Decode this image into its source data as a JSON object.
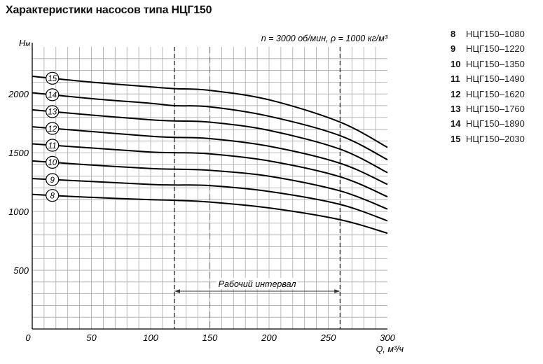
{
  "title": "Характеристики насосов типа НЦГ150",
  "chart_data": {
    "type": "line",
    "title": "Характеристики насосов типа НЦГ150",
    "ylabel_main": "H",
    "ylabel_sub": "м",
    "xlabel": "Q, м³/ч",
    "conditions": "n = 3000 об/мин, ρ = 1000 кг/м³",
    "xlim": [
      0,
      300
    ],
    "ylim": [
      0,
      2400
    ],
    "x_ticks": [
      0,
      50,
      100,
      150,
      200,
      250,
      300
    ],
    "y_ticks": [
      500,
      1000,
      1500,
      2000
    ],
    "grid": true,
    "working_interval": {
      "label": "Рабочий интервал",
      "from": 120,
      "to": 260,
      "nominal": 150
    },
    "series": [
      {
        "name": "8",
        "x": [
          0,
          50,
          100,
          120,
          150,
          200,
          260,
          300
        ],
        "y": [
          1145,
          1120,
          1100,
          1095,
          1080,
          1030,
          930,
          815
        ]
      },
      {
        "name": "9",
        "x": [
          0,
          50,
          100,
          120,
          150,
          200,
          260,
          300
        ],
        "y": [
          1280,
          1255,
          1230,
          1225,
          1220,
          1170,
          1060,
          920
        ]
      },
      {
        "name": "10",
        "x": [
          0,
          50,
          100,
          120,
          150,
          200,
          260,
          300
        ],
        "y": [
          1430,
          1395,
          1365,
          1360,
          1350,
          1300,
          1175,
          1020
        ]
      },
      {
        "name": "11",
        "x": [
          0,
          50,
          100,
          120,
          150,
          200,
          260,
          300
        ],
        "y": [
          1575,
          1540,
          1505,
          1500,
          1490,
          1430,
          1295,
          1125
        ]
      },
      {
        "name": "12",
        "x": [
          0,
          50,
          100,
          120,
          150,
          200,
          260,
          300
        ],
        "y": [
          1720,
          1680,
          1640,
          1630,
          1620,
          1555,
          1410,
          1230
        ]
      },
      {
        "name": "13",
        "x": [
          0,
          50,
          100,
          120,
          150,
          200,
          260,
          300
        ],
        "y": [
          1865,
          1820,
          1780,
          1770,
          1760,
          1690,
          1530,
          1330
        ]
      },
      {
        "name": "14",
        "x": [
          0,
          50,
          100,
          120,
          150,
          200,
          260,
          300
        ],
        "y": [
          2010,
          1960,
          1920,
          1900,
          1890,
          1810,
          1645,
          1440
        ]
      },
      {
        "name": "15",
        "x": [
          0,
          50,
          100,
          120,
          150,
          200,
          260,
          300
        ],
        "y": [
          2150,
          2100,
          2060,
          2045,
          2030,
          1950,
          1760,
          1545
        ]
      }
    ]
  },
  "legend": [
    {
      "num": "8",
      "name": "НЦГ150–1080"
    },
    {
      "num": "9",
      "name": "НЦГ150–1220"
    },
    {
      "num": "10",
      "name": "НЦГ150–1350"
    },
    {
      "num": "11",
      "name": "НЦГ150–1490"
    },
    {
      "num": "12",
      "name": "НЦГ150–1620"
    },
    {
      "num": "13",
      "name": "НЦГ150–1760"
    },
    {
      "num": "14",
      "name": "НЦГ150–1890"
    },
    {
      "num": "15",
      "name": "НЦГ150–2030"
    }
  ]
}
